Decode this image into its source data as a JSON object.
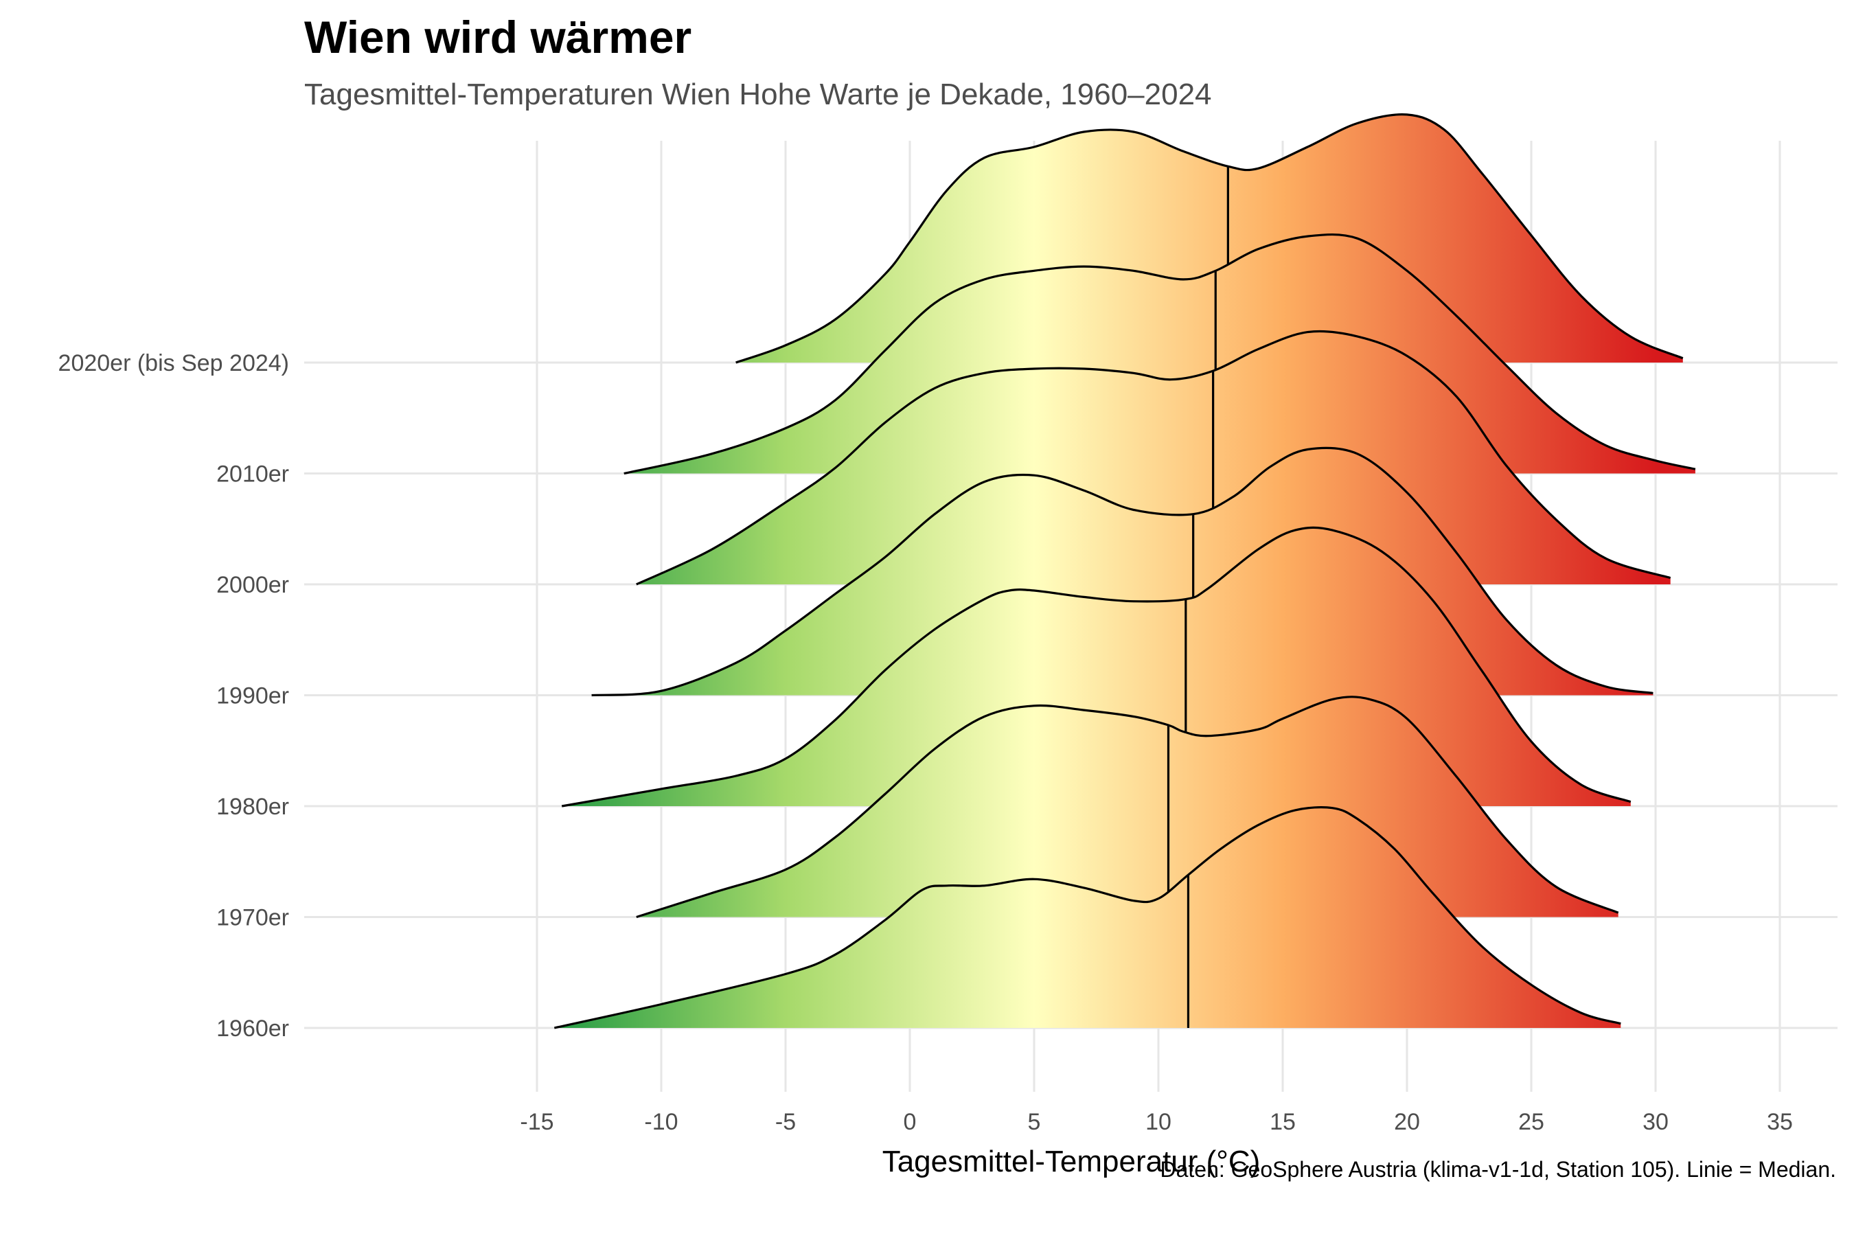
{
  "title": "Wien wird wärmer",
  "subtitle": "Tagesmittel-Temperaturen Wien Hohe Warte je Dekade, 1960–2024",
  "caption": "Daten: GeoSphere Austria (klima-v1-1d, Station 105). Linie = Median.",
  "chart_data": {
    "type": "ridgeline",
    "xlabel": "Tagesmittel-Temperatur (°C)",
    "ylabel": "",
    "xlim": [
      -17,
      36
    ],
    "xticks": [
      -15,
      -10,
      -5,
      0,
      5,
      10,
      15,
      20,
      25,
      30,
      35
    ],
    "grid": true,
    "legend": "none",
    "color_scale": {
      "description": "gradient along temperature axis",
      "stops": [
        {
          "x": -15,
          "color": "#1a9641"
        },
        {
          "x": -5,
          "color": "#a6d96a"
        },
        {
          "x": 5,
          "color": "#ffffbf"
        },
        {
          "x": 15,
          "color": "#fdae61"
        },
        {
          "x": 30,
          "color": "#d7191c"
        }
      ]
    },
    "series": [
      {
        "name": "1960er",
        "median": 11.2,
        "density": [
          [
            -14.3,
            0
          ],
          [
            -10,
            0.011
          ],
          [
            -5,
            0.025
          ],
          [
            -3,
            0.034
          ],
          [
            -1,
            0.05
          ],
          [
            0.5,
            0.064
          ],
          [
            1.5,
            0.066
          ],
          [
            3,
            0.066
          ],
          [
            5,
            0.069
          ],
          [
            7,
            0.065
          ],
          [
            9,
            0.059
          ],
          [
            10,
            0.06
          ],
          [
            11.2,
            0.071
          ],
          [
            12.5,
            0.083
          ],
          [
            14,
            0.094
          ],
          [
            15.5,
            0.101
          ],
          [
            17,
            0.102
          ],
          [
            18,
            0.097
          ],
          [
            19.5,
            0.083
          ],
          [
            21,
            0.063
          ],
          [
            23,
            0.038
          ],
          [
            25,
            0.02
          ],
          [
            27,
            0.007
          ],
          [
            28.6,
            0.002
          ]
        ]
      },
      {
        "name": "1970er",
        "median": 10.4,
        "density": [
          [
            -11,
            0
          ],
          [
            -8,
            0.011
          ],
          [
            -5,
            0.022
          ],
          [
            -3,
            0.037
          ],
          [
            -1,
            0.057
          ],
          [
            1,
            0.078
          ],
          [
            3,
            0.093
          ],
          [
            5,
            0.098
          ],
          [
            7,
            0.096
          ],
          [
            9,
            0.093
          ],
          [
            10.4,
            0.089
          ],
          [
            11,
            0.086
          ],
          [
            12,
            0.084
          ],
          [
            14,
            0.087
          ],
          [
            15,
            0.092
          ],
          [
            17,
            0.101
          ],
          [
            18.5,
            0.101
          ],
          [
            20,
            0.092
          ],
          [
            22,
            0.065
          ],
          [
            24,
            0.036
          ],
          [
            26,
            0.014
          ],
          [
            28.5,
            0.002
          ]
        ]
      },
      {
        "name": "1980er",
        "median": 11.1,
        "density": [
          [
            -14,
            0
          ],
          [
            -10,
            0.008
          ],
          [
            -7,
            0.014
          ],
          [
            -5,
            0.022
          ],
          [
            -3,
            0.04
          ],
          [
            -1,
            0.063
          ],
          [
            1,
            0.082
          ],
          [
            3,
            0.096
          ],
          [
            4,
            0.1
          ],
          [
            5,
            0.1
          ],
          [
            7,
            0.097
          ],
          [
            9,
            0.095
          ],
          [
            11.1,
            0.096
          ],
          [
            12,
            0.101
          ],
          [
            14,
            0.119
          ],
          [
            15.5,
            0.128
          ],
          [
            17,
            0.128
          ],
          [
            19,
            0.118
          ],
          [
            21,
            0.096
          ],
          [
            23,
            0.063
          ],
          [
            25,
            0.03
          ],
          [
            27,
            0.01
          ],
          [
            29,
            0.002
          ]
        ]
      },
      {
        "name": "1990er",
        "median": 11.4,
        "density": [
          [
            -12.8,
            0
          ],
          [
            -10,
            0.002
          ],
          [
            -7,
            0.015
          ],
          [
            -5,
            0.03
          ],
          [
            -3,
            0.047
          ],
          [
            -1,
            0.064
          ],
          [
            1,
            0.084
          ],
          [
            3,
            0.099
          ],
          [
            5,
            0.102
          ],
          [
            7,
            0.095
          ],
          [
            9,
            0.086
          ],
          [
            11.4,
            0.084
          ],
          [
            13,
            0.092
          ],
          [
            14.5,
            0.106
          ],
          [
            16,
            0.114
          ],
          [
            18,
            0.112
          ],
          [
            20,
            0.094
          ],
          [
            22,
            0.066
          ],
          [
            24,
            0.035
          ],
          [
            26,
            0.014
          ],
          [
            28,
            0.004
          ],
          [
            29.9,
            0.001
          ]
        ]
      },
      {
        "name": "2000er",
        "median": 12.2,
        "density": [
          [
            -11,
            0
          ],
          [
            -8,
            0.016
          ],
          [
            -5,
            0.038
          ],
          [
            -3,
            0.054
          ],
          [
            -1,
            0.075
          ],
          [
            1,
            0.091
          ],
          [
            3,
            0.098
          ],
          [
            5,
            0.1
          ],
          [
            7,
            0.1
          ],
          [
            9,
            0.098
          ],
          [
            10.5,
            0.095
          ],
          [
            12.2,
            0.099
          ],
          [
            14,
            0.109
          ],
          [
            16,
            0.117
          ],
          [
            18,
            0.115
          ],
          [
            20,
            0.106
          ],
          [
            22,
            0.087
          ],
          [
            24,
            0.055
          ],
          [
            26,
            0.03
          ],
          [
            28,
            0.012
          ],
          [
            30.6,
            0.003
          ]
        ]
      },
      {
        "name": "2010er",
        "median": 12.3,
        "density": [
          [
            -11.5,
            0
          ],
          [
            -8,
            0.009
          ],
          [
            -5,
            0.021
          ],
          [
            -3,
            0.034
          ],
          [
            -1,
            0.057
          ],
          [
            1,
            0.079
          ],
          [
            3,
            0.09
          ],
          [
            5,
            0.094
          ],
          [
            7,
            0.096
          ],
          [
            9,
            0.094
          ],
          [
            11,
            0.09
          ],
          [
            12.3,
            0.094
          ],
          [
            14,
            0.104
          ],
          [
            16,
            0.11
          ],
          [
            18,
            0.109
          ],
          [
            20,
            0.094
          ],
          [
            22,
            0.073
          ],
          [
            24,
            0.05
          ],
          [
            26,
            0.028
          ],
          [
            28,
            0.013
          ],
          [
            30,
            0.006
          ],
          [
            31.6,
            0.002
          ]
        ]
      },
      {
        "name": "2020er (bis Sep 2024)",
        "median": 12.8,
        "density": [
          [
            -7,
            0
          ],
          [
            -5,
            0.008
          ],
          [
            -3,
            0.02
          ],
          [
            -1,
            0.041
          ],
          [
            0,
            0.056
          ],
          [
            1.5,
            0.08
          ],
          [
            3,
            0.095
          ],
          [
            5,
            0.1
          ],
          [
            7,
            0.107
          ],
          [
            9,
            0.107
          ],
          [
            11,
            0.098
          ],
          [
            12.8,
            0.091
          ],
          [
            14,
            0.09
          ],
          [
            16,
            0.1
          ],
          [
            18,
            0.111
          ],
          [
            20,
            0.115
          ],
          [
            21.5,
            0.108
          ],
          [
            23,
            0.088
          ],
          [
            25,
            0.059
          ],
          [
            27,
            0.031
          ],
          [
            29,
            0.012
          ],
          [
            31.1,
            0.002
          ]
        ]
      }
    ]
  }
}
